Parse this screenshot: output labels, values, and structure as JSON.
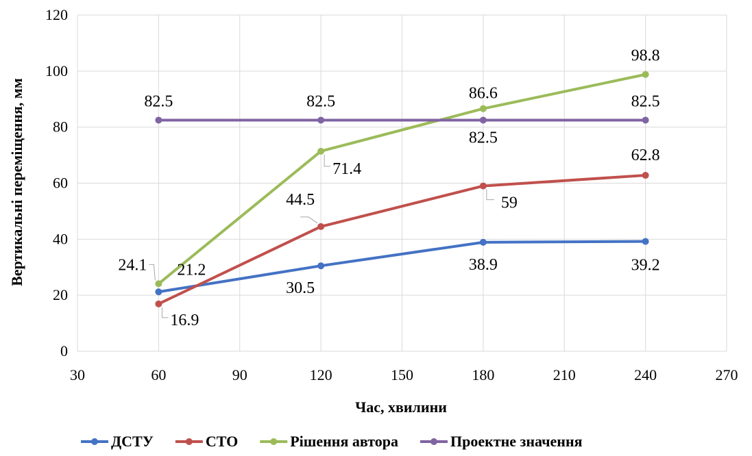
{
  "chart_data": {
    "type": "line",
    "title": "",
    "xlabel": "Час, хвилини",
    "ylabel": "Вертикальні переміщення, мм",
    "xlim": [
      30,
      270
    ],
    "ylim": [
      0,
      120
    ],
    "xticks": [
      30,
      60,
      90,
      120,
      150,
      180,
      210,
      240,
      270
    ],
    "yticks": [
      0,
      20,
      40,
      60,
      80,
      100,
      120
    ],
    "grid": true,
    "legend_position": "bottom",
    "x": [
      60,
      120,
      180,
      240
    ],
    "series": [
      {
        "name": "ДСТУ",
        "color": "#4472c4",
        "values": [
          21.2,
          30.5,
          38.9,
          39.2
        ],
        "labels": [
          "21.2",
          "30.5",
          "38.9",
          "39.2"
        ]
      },
      {
        "name": "СТО",
        "color": "#c0504d",
        "values": [
          16.9,
          44.5,
          59,
          62.8
        ],
        "labels": [
          "16.9",
          "44.5",
          "59",
          "62.8"
        ]
      },
      {
        "name": "Рішення автора",
        "color": "#9bbb59",
        "values": [
          24.1,
          71.4,
          86.6,
          98.8
        ],
        "labels": [
          "24.1",
          "71.4",
          "86.6",
          "98.8"
        ]
      },
      {
        "name": "Проектне значення",
        "color": "#8064a2",
        "values": [
          82.5,
          82.5,
          82.5,
          82.5
        ],
        "labels": [
          "82.5",
          "82.5",
          "82.5",
          "82.5"
        ]
      }
    ]
  }
}
